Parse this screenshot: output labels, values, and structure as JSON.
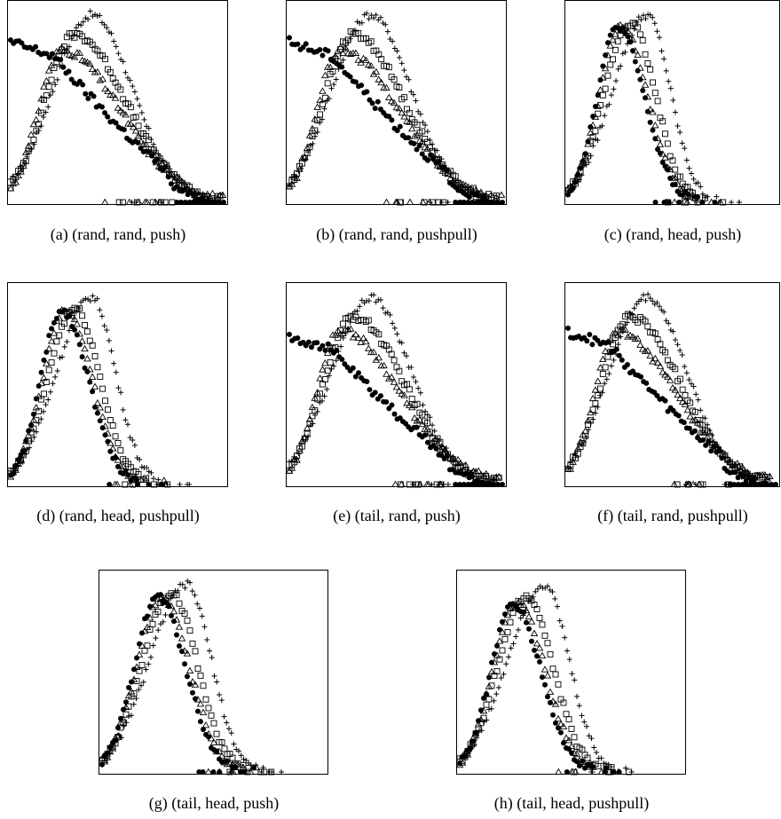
{
  "chart_data": [
    {
      "type": "scatter",
      "caption": "(a) (rand, rand, push)",
      "profile": "flat",
      "xlim": [
        0,
        100
      ],
      "ylim": [
        0,
        100
      ],
      "grid": false,
      "series": [
        {
          "marker": "plus",
          "peak_x": 38,
          "peak_y": 96
        },
        {
          "marker": "square",
          "peak_x": 30,
          "peak_y": 86
        },
        {
          "marker": "triangle",
          "peak_x": 24,
          "peak_y": 78
        },
        {
          "marker": "dot",
          "start_y": 82
        }
      ]
    },
    {
      "type": "scatter",
      "caption": "(b) (rand, rand, pushpull)",
      "profile": "flat",
      "xlim": [
        0,
        100
      ],
      "ylim": [
        0,
        100
      ],
      "grid": false,
      "series": [
        {
          "marker": "plus",
          "peak_x": 38,
          "peak_y": 96
        },
        {
          "marker": "square",
          "peak_x": 30,
          "peak_y": 86
        },
        {
          "marker": "triangle",
          "peak_x": 24,
          "peak_y": 78
        },
        {
          "marker": "dot",
          "start_y": 82
        }
      ]
    },
    {
      "type": "scatter",
      "caption": "(c) (rand, head, push)",
      "profile": "narrow",
      "xlim": [
        0,
        100
      ],
      "ylim": [
        0,
        100
      ],
      "grid": false,
      "series": [
        {
          "marker": "plus",
          "peak_x": 38,
          "peak_y": 96
        },
        {
          "marker": "square",
          "peak_x": 30,
          "peak_y": 92
        },
        {
          "marker": "triangle",
          "peak_x": 26,
          "peak_y": 90
        },
        {
          "marker": "dot",
          "peak_x": 24,
          "peak_y": 90
        }
      ]
    },
    {
      "type": "scatter",
      "caption": "(d) (rand, head, pushpull)",
      "profile": "narrow",
      "xlim": [
        0,
        100
      ],
      "ylim": [
        0,
        100
      ],
      "grid": false,
      "series": [
        {
          "marker": "plus",
          "peak_x": 38,
          "peak_y": 96
        },
        {
          "marker": "square",
          "peak_x": 30,
          "peak_y": 90
        },
        {
          "marker": "triangle",
          "peak_x": 26,
          "peak_y": 89
        },
        {
          "marker": "dot",
          "peak_x": 24,
          "peak_y": 89
        }
      ]
    },
    {
      "type": "scatter",
      "caption": "(e) (tail, rand, push)",
      "profile": "flat",
      "xlim": [
        0,
        100
      ],
      "ylim": [
        0,
        100
      ],
      "grid": false,
      "series": [
        {
          "marker": "plus",
          "peak_x": 38,
          "peak_y": 96
        },
        {
          "marker": "square",
          "peak_x": 30,
          "peak_y": 86
        },
        {
          "marker": "triangle",
          "peak_x": 24,
          "peak_y": 79
        },
        {
          "marker": "dot",
          "start_y": 76
        }
      ]
    },
    {
      "type": "scatter",
      "caption": "(f) (tail, rand, pushpull)",
      "profile": "flat",
      "xlim": [
        0,
        100
      ],
      "ylim": [
        0,
        100
      ],
      "grid": false,
      "series": [
        {
          "marker": "plus",
          "peak_x": 38,
          "peak_y": 96
        },
        {
          "marker": "square",
          "peak_x": 30,
          "peak_y": 86
        },
        {
          "marker": "triangle",
          "peak_x": 24,
          "peak_y": 78
        },
        {
          "marker": "dot",
          "start_y": 78
        }
      ]
    },
    {
      "type": "scatter",
      "caption": "(g) (tail, head, push)",
      "profile": "narrow",
      "xlim": [
        0,
        100
      ],
      "ylim": [
        0,
        100
      ],
      "grid": false,
      "series": [
        {
          "marker": "plus",
          "peak_x": 38,
          "peak_y": 96
        },
        {
          "marker": "square",
          "peak_x": 31,
          "peak_y": 92
        },
        {
          "marker": "triangle",
          "peak_x": 27,
          "peak_y": 90
        },
        {
          "marker": "dot",
          "peak_x": 25,
          "peak_y": 90
        }
      ]
    },
    {
      "type": "scatter",
      "caption": "(h) (tail, head, pushpull)",
      "profile": "narrow",
      "xlim": [
        0,
        100
      ],
      "ylim": [
        0,
        100
      ],
      "grid": false,
      "series": [
        {
          "marker": "plus",
          "peak_x": 38,
          "peak_y": 96
        },
        {
          "marker": "square",
          "peak_x": 30,
          "peak_y": 90
        },
        {
          "marker": "triangle",
          "peak_x": 26,
          "peak_y": 87
        },
        {
          "marker": "dot",
          "peak_x": 24,
          "peak_y": 86
        }
      ]
    }
  ]
}
